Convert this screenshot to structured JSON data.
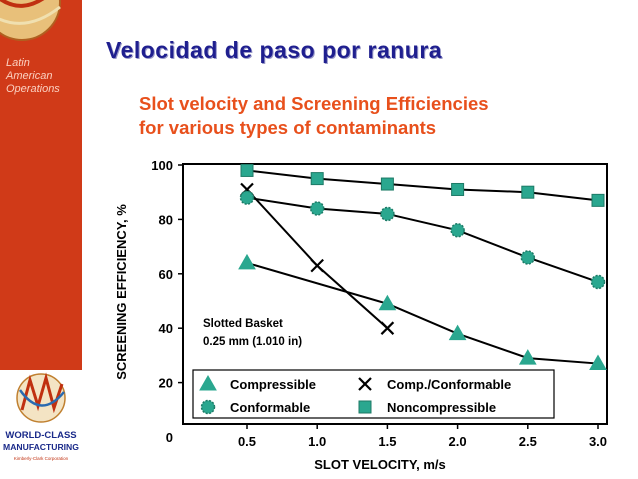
{
  "slide": {
    "title": "Velocidad de paso por ranura",
    "sidebar_lines": [
      "Latin",
      "American",
      "Operations"
    ],
    "logo_lines": [
      "WORLD-CLASS",
      "MANUFACTURING",
      "Kimberly-Clark Corporation"
    ]
  },
  "colors": {
    "sidebar": "#d03a18",
    "title": "#1f1f8f",
    "chart_title": "#e8501c",
    "marker": "#2aa78f"
  },
  "chart_data": {
    "type": "line",
    "title_lines": [
      "Slot velocity and Screening Efficiencies",
      "for various types of contaminants"
    ],
    "xlabel": "SLOT VELOCITY, m/s",
    "ylabel": "SCREENING EFFICIENCY, %",
    "xlim": [
      0.25,
      3.1
    ],
    "ylim": [
      0,
      100
    ],
    "xticks": [
      0.5,
      1.0,
      1.5,
      2.0,
      2.5,
      3.0
    ],
    "xtick_labels": [
      "0.5",
      "1.0",
      "1.5",
      "2.0",
      "2.5",
      "3.0"
    ],
    "yticks": [
      0,
      20,
      40,
      60,
      80,
      100
    ],
    "ytick_labels": [
      "0",
      "20",
      "40",
      "60",
      "80",
      "100"
    ],
    "grid": false,
    "annotation_lines": [
      "Slotted Basket",
      "0.25 mm (1.010 in)"
    ],
    "legend_placement": "bottom-right",
    "series": [
      {
        "name": "Compressible",
        "marker": "triangle",
        "x": [
          0.5,
          1.5,
          2.0,
          2.5,
          3.0
        ],
        "y": [
          64,
          49,
          38,
          29,
          27
        ]
      },
      {
        "name": "Comp./Conformable",
        "marker": "x",
        "x": [
          0.5,
          1.0,
          1.5
        ],
        "y": [
          91,
          63,
          40
        ]
      },
      {
        "name": "Conformable",
        "marker": "circle",
        "x": [
          0.5,
          1.0,
          1.5,
          2.0,
          2.5,
          3.0
        ],
        "y": [
          88,
          84,
          82,
          76,
          66,
          57
        ]
      },
      {
        "name": "Noncompressible",
        "marker": "square",
        "x": [
          0.5,
          1.0,
          1.5,
          2.0,
          2.5,
          3.0
        ],
        "y": [
          98,
          95,
          93,
          91,
          90,
          87
        ]
      }
    ]
  }
}
